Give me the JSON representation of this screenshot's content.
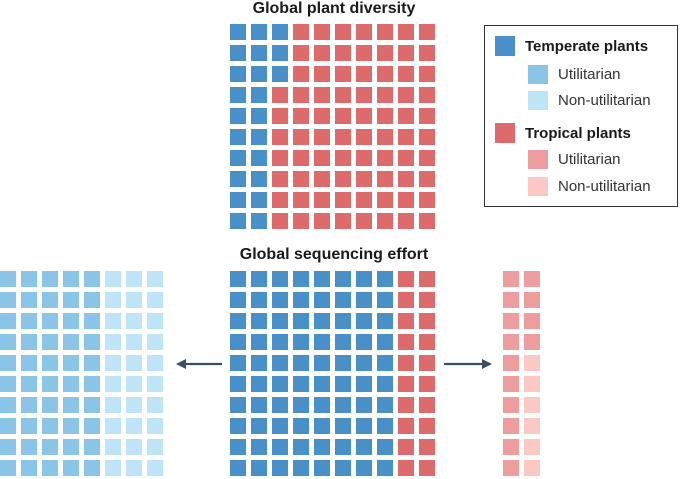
{
  "colors": {
    "temperate": "#4a90c8",
    "temperate_utilitarian": "#8ac4e6",
    "temperate_non_utilitarian": "#bfe4f7",
    "tropical": "#de6b6b",
    "tropical_utilitarian": "#ee9d9f",
    "tropical_non_utilitarian": "#fbc8c4",
    "arrow": "#3a4f66"
  },
  "legend": {
    "temperate": "Temperate plants",
    "temperate_utilitarian": "Utilitarian",
    "temperate_non_utilitarian": "Non-utilitarian",
    "tropical": "Tropical plants",
    "tropical_utilitarian": "Utilitarian",
    "tropical_non_utilitarian": "Non-utilitarian",
    "placement": "top-right"
  },
  "chart_data": [
    {
      "type": "waffle",
      "title": "Global plant diversity",
      "rows": 10,
      "cols": 10,
      "fill_order": "column-wise",
      "series": [
        {
          "name": "Temperate plants",
          "count": 23,
          "color_key": "temperate"
        },
        {
          "name": "Tropical plants",
          "count": 77,
          "color_key": "tropical"
        }
      ]
    },
    {
      "type": "waffle",
      "title": "Global sequencing effort",
      "rows": 10,
      "cols": 10,
      "fill_order": "column-wise",
      "series": [
        {
          "name": "Temperate plants",
          "count": 80,
          "color_key": "temperate"
        },
        {
          "name": "Tropical plants",
          "count": 20,
          "color_key": "tropical"
        }
      ]
    },
    {
      "type": "waffle",
      "title": "",
      "breakdown_of": "Temperate plants",
      "rows": 10,
      "cols": 8,
      "fill_order": "column-wise",
      "series": [
        {
          "name": "Utilitarian",
          "count": 50,
          "color_key": "temperate_utilitarian"
        },
        {
          "name": "Non-utilitarian",
          "count": 30,
          "color_key": "temperate_non_utilitarian"
        }
      ]
    },
    {
      "type": "waffle",
      "title": "",
      "breakdown_of": "Tropical plants",
      "rows": 10,
      "cols": 2,
      "fill_order": "column-wise",
      "series": [
        {
          "name": "Utilitarian",
          "count": 14,
          "color_key": "tropical_utilitarian"
        },
        {
          "name": "Non-utilitarian",
          "count": 6,
          "color_key": "tropical_non_utilitarian"
        }
      ]
    }
  ]
}
